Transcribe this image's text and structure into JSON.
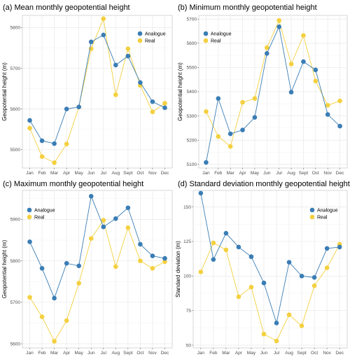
{
  "colors": {
    "analogue": "#3A7DB5",
    "real": "#F4D03F",
    "grid": "#EBEBEB",
    "frame": "#BDBDBD"
  },
  "chart_data": [
    {
      "type": "line",
      "title": "(a) Mean monthly geopotential height",
      "ylabel": "Geopotential height (m)",
      "categories": [
        "Jan",
        "Feb",
        "Mar",
        "Apr",
        "May",
        "Jun",
        "Jul",
        "Aug",
        "Sept",
        "Oct",
        "Nov",
        "Dec"
      ],
      "ylim": [
        5455,
        5830
      ],
      "yticks": [
        5500,
        5600,
        5700,
        5800
      ],
      "grid": true,
      "legend": "top-right",
      "series": [
        {
          "name": "Analogue",
          "color": "#3A7DB5",
          "values": [
            5572,
            5522,
            5515,
            5600,
            5605,
            5765,
            5782,
            5708,
            5730,
            5665,
            5618,
            5603
          ]
        },
        {
          "name": "Real",
          "color": "#F4D03F",
          "values": [
            5553,
            5483,
            5468,
            5514,
            5605,
            5748,
            5822,
            5635,
            5748,
            5658,
            5593,
            5614
          ]
        }
      ]
    },
    {
      "type": "line",
      "title": "(b) Minimum monthly geopotential height",
      "ylabel": "Geopotential height (m)",
      "categories": [
        "Jan",
        "Feb",
        "Mar",
        "Apr",
        "May",
        "Jun",
        "Jul",
        "Aug",
        "Sept",
        "Oct",
        "Nov",
        "Dec"
      ],
      "ylim": [
        5085,
        5715
      ],
      "yticks": [
        5100,
        5200,
        5300,
        5400,
        5500,
        5600,
        5700
      ],
      "grid": true,
      "legend": "top-left",
      "series": [
        {
          "name": "Analogue",
          "color": "#3A7DB5",
          "values": [
            5108,
            5372,
            5226,
            5242,
            5294,
            5558,
            5668,
            5398,
            5524,
            5490,
            5306,
            5258
          ]
        },
        {
          "name": "Real",
          "color": "#F4D03F",
          "values": [
            5318,
            5215,
            5174,
            5356,
            5372,
            5582,
            5694,
            5514,
            5632,
            5444,
            5344,
            5362
          ]
        }
      ]
    },
    {
      "type": "line",
      "title": "(c) Maximum monthly geopotential height",
      "ylabel": "Geopotential height (m)",
      "categories": [
        "Jan",
        "Feb",
        "Mar",
        "Apr",
        "May",
        "Jun",
        "Jul",
        "Aug",
        "Sept",
        "Oct",
        "Nov",
        "Dec"
      ],
      "ylim": [
        5590,
        5970
      ],
      "yticks": [
        5600,
        5700,
        5800,
        5900
      ],
      "grid": true,
      "legend": "top-left",
      "series": [
        {
          "name": "Analogue",
          "color": "#3A7DB5",
          "values": [
            5846,
            5782,
            5710,
            5794,
            5788,
            5956,
            5882,
            5902,
            5928,
            5840,
            5812,
            5806
          ]
        },
        {
          "name": "Real",
          "color": "#F4D03F",
          "values": [
            5712,
            5665,
            5606,
            5656,
            5746,
            5854,
            5898,
            5786,
            5880,
            5800,
            5782,
            5798
          ]
        }
      ]
    },
    {
      "type": "line",
      "title": "(d) Standard deviation monthly geopotential height",
      "ylabel": "Standard deviation (m)",
      "categories": [
        "Jan",
        "Feb",
        "Mar",
        "Apr",
        "May",
        "Jun",
        "Jul",
        "Aug",
        "Sept",
        "Oct",
        "Nov",
        "Dec"
      ],
      "ylim": [
        48,
        162
      ],
      "yticks": [
        50,
        75,
        100,
        125,
        150
      ],
      "grid": true,
      "legend": "top-right",
      "series": [
        {
          "name": "Analogue",
          "color": "#3A7DB5",
          "values": [
            160,
            112,
            131,
            121,
            114,
            95,
            66,
            110,
            100,
            99,
            120,
            121
          ]
        },
        {
          "name": "Real",
          "color": "#F4D03F",
          "values": [
            103,
            124,
            119,
            85,
            92,
            58,
            53,
            72,
            64,
            93,
            106,
            123
          ]
        }
      ]
    }
  ]
}
